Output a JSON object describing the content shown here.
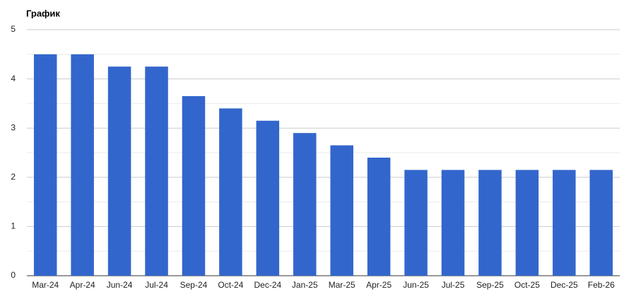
{
  "chart_data": {
    "type": "bar",
    "title": "График",
    "categories": [
      "Mar-24",
      "Apr-24",
      "Jun-24",
      "Jul-24",
      "Sep-24",
      "Oct-24",
      "Dec-24",
      "Jan-25",
      "Mar-25",
      "Apr-25",
      "Jun-25",
      "Jul-25",
      "Sep-25",
      "Oct-25",
      "Dec-25",
      "Feb-26"
    ],
    "values": [
      4.5,
      4.5,
      4.25,
      4.25,
      3.65,
      3.4,
      3.15,
      2.9,
      2.65,
      2.4,
      2.15,
      2.15,
      2.15,
      2.15,
      2.15,
      2.15
    ],
    "color": "#3366cc",
    "ylim": [
      0,
      5
    ],
    "yticks": [
      0,
      1,
      2,
      3,
      4,
      5
    ],
    "minor_yticks": [
      0.5,
      1.5,
      2.5,
      3.5,
      4.5
    ],
    "grid": true
  }
}
